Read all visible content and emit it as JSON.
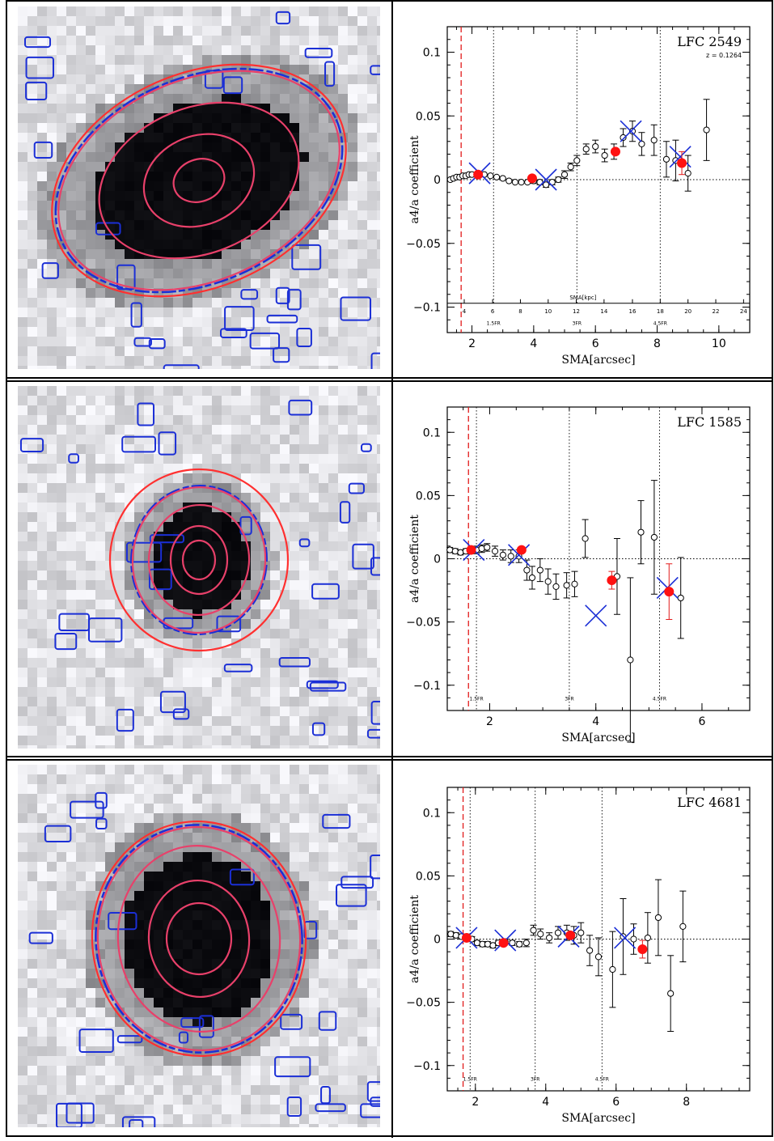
{
  "rows": [
    {
      "galaxy_ellipses": [
        {
          "rx": 32,
          "ry": 26,
          "rot": -20
        },
        {
          "rx": 70,
          "ry": 55,
          "rot": -22
        },
        {
          "rx": 128,
          "ry": 90,
          "rot": -22
        },
        {
          "rx": 182,
          "ry": 124,
          "rot": -24
        },
        {
          "rx": 190,
          "ry": 132,
          "rot": -24
        }
      ],
      "chart_data": {
        "type": "scatter",
        "label": "LFC 2549",
        "redshift": "z = 0.1264",
        "xlabel": "SMA[arcsec]",
        "ylabel": "a4/a coefficient",
        "xlim": [
          1.2,
          11
        ],
        "ylim": [
          -0.12,
          0.12
        ],
        "xticks": [
          2,
          4,
          6,
          8,
          10
        ],
        "yticks": [
          -0.1,
          -0.05,
          0,
          0.05,
          0.1
        ],
        "ytick_labels": [
          "−0.1",
          "−0.05",
          "0",
          "0.05",
          "0.1"
        ],
        "red_dashed_x": 1.65,
        "vlines": [
          {
            "x": 2.7,
            "label": "1.5FR"
          },
          {
            "x": 5.4,
            "label": "3FR"
          },
          {
            "x": 8.1,
            "label": "4.5FR"
          }
        ],
        "kpc_axis": {
          "label": "SMA[kpc]",
          "ticks": [
            {
              "x": 1.75,
              "label": "4"
            },
            {
              "x": 2.67,
              "label": "6"
            },
            {
              "x": 3.57,
              "label": "8"
            },
            {
              "x": 4.47,
              "label": "10"
            },
            {
              "x": 5.38,
              "label": "12"
            },
            {
              "x": 6.28,
              "label": "14"
            },
            {
              "x": 7.2,
              "label": "16"
            },
            {
              "x": 8.1,
              "label": "18"
            },
            {
              "x": 9.0,
              "label": "20"
            },
            {
              "x": 9.9,
              "label": "22"
            },
            {
              "x": 10.8,
              "label": "24"
            }
          ]
        },
        "points": [
          {
            "x": 1.3,
            "y": 0.0,
            "err": 0.001
          },
          {
            "x": 1.4,
            "y": 0.001,
            "err": 0.001
          },
          {
            "x": 1.5,
            "y": 0.002,
            "err": 0.001
          },
          {
            "x": 1.6,
            "y": 0.002,
            "err": 0.001
          },
          {
            "x": 1.7,
            "y": 0.003,
            "err": 0.001
          },
          {
            "x": 1.8,
            "y": 0.003,
            "err": 0.001
          },
          {
            "x": 1.9,
            "y": 0.004,
            "err": 0.001
          },
          {
            "x": 2.0,
            "y": 0.004,
            "err": 0.001
          },
          {
            "x": 2.2,
            "y": 0.005,
            "err": 0.001
          },
          {
            "x": 2.4,
            "y": 0.004,
            "err": 0.001
          },
          {
            "x": 2.6,
            "y": 0.003,
            "err": 0.001
          },
          {
            "x": 2.8,
            "y": 0.002,
            "err": 0.001
          },
          {
            "x": 3.0,
            "y": 0.001,
            "err": 0.001
          },
          {
            "x": 3.2,
            "y": -0.001,
            "err": 0.001
          },
          {
            "x": 3.4,
            "y": -0.002,
            "err": 0.001
          },
          {
            "x": 3.6,
            "y": -0.002,
            "err": 0.001
          },
          {
            "x": 3.8,
            "y": -0.002,
            "err": 0.001
          },
          {
            "x": 4.0,
            "y": -0.001,
            "err": 0.002
          },
          {
            "x": 4.2,
            "y": -0.002,
            "err": 0.002
          },
          {
            "x": 4.4,
            "y": -0.004,
            "err": 0.002
          },
          {
            "x": 4.6,
            "y": -0.002,
            "err": 0.002
          },
          {
            "x": 4.8,
            "y": 0.0,
            "err": 0.002
          },
          {
            "x": 5.0,
            "y": 0.004,
            "err": 0.003
          },
          {
            "x": 5.2,
            "y": 0.01,
            "err": 0.003
          },
          {
            "x": 5.4,
            "y": 0.015,
            "err": 0.004
          },
          {
            "x": 5.7,
            "y": 0.024,
            "err": 0.004
          },
          {
            "x": 6.0,
            "y": 0.026,
            "err": 0.005
          },
          {
            "x": 6.3,
            "y": 0.019,
            "err": 0.005
          },
          {
            "x": 6.6,
            "y": 0.022,
            "err": 0.006
          },
          {
            "x": 6.9,
            "y": 0.033,
            "err": 0.007
          },
          {
            "x": 7.2,
            "y": 0.038,
            "err": 0.008
          },
          {
            "x": 7.5,
            "y": 0.028,
            "err": 0.009
          },
          {
            "x": 7.9,
            "y": 0.031,
            "err": 0.012
          },
          {
            "x": 8.3,
            "y": 0.016,
            "err": 0.014
          },
          {
            "x": 8.6,
            "y": 0.015,
            "err": 0.016
          },
          {
            "x": 9.0,
            "y": 0.005,
            "err": 0.014
          },
          {
            "x": 9.6,
            "y": 0.039,
            "err": 0.024
          }
        ],
        "red_points": [
          {
            "x": 2.2,
            "y": 0.004,
            "err": 0.0
          },
          {
            "x": 3.95,
            "y": 0.001,
            "err": 0.0
          },
          {
            "x": 6.65,
            "y": 0.022,
            "err": 0.0
          },
          {
            "x": 8.8,
            "y": 0.013,
            "err": 0.009
          }
        ],
        "crosses": [
          {
            "x": 2.25,
            "y": 0.005
          },
          {
            "x": 4.4,
            "y": 0.0
          },
          {
            "x": 7.15,
            "y": 0.038
          },
          {
            "x": 8.75,
            "y": 0.018
          }
        ]
      }
    },
    {
      "galaxy_ellipses": [
        {
          "rx": 20,
          "ry": 24,
          "rot": 0
        },
        {
          "rx": 35,
          "ry": 42,
          "rot": 0
        },
        {
          "rx": 62,
          "ry": 68,
          "rot": 5
        },
        {
          "rx": 82,
          "ry": 90,
          "rot": 5
        },
        {
          "rx": 110,
          "ry": 112,
          "rot": 0
        }
      ],
      "chart_data": {
        "type": "scatter",
        "label": "LFC 1585",
        "xlabel": "SMA[arcsec]",
        "ylabel": "a4/a coefficient",
        "xlim": [
          1.2,
          6.9
        ],
        "ylim": [
          -0.12,
          0.12
        ],
        "xticks": [
          2,
          4,
          6
        ],
        "yticks": [
          -0.1,
          -0.05,
          0,
          0.05,
          0.1
        ],
        "ytick_labels": [
          "−0.1",
          "−0.05",
          "0",
          "0.05",
          "0.1"
        ],
        "red_dashed_x": 1.6,
        "vlines": [
          {
            "x": 1.75,
            "label": "1.5FR"
          },
          {
            "x": 3.5,
            "label": "3FR"
          },
          {
            "x": 5.2,
            "label": "4.5FR"
          }
        ],
        "points": [
          {
            "x": 1.25,
            "y": 0.007,
            "err": 0.002
          },
          {
            "x": 1.35,
            "y": 0.006,
            "err": 0.002
          },
          {
            "x": 1.45,
            "y": 0.005,
            "err": 0.002
          },
          {
            "x": 1.55,
            "y": 0.006,
            "err": 0.002
          },
          {
            "x": 1.65,
            "y": 0.006,
            "err": 0.002
          },
          {
            "x": 1.75,
            "y": 0.007,
            "err": 0.003
          },
          {
            "x": 1.85,
            "y": 0.008,
            "err": 0.003
          },
          {
            "x": 1.95,
            "y": 0.009,
            "err": 0.003
          },
          {
            "x": 2.1,
            "y": 0.006,
            "err": 0.004
          },
          {
            "x": 2.25,
            "y": 0.003,
            "err": 0.004
          },
          {
            "x": 2.4,
            "y": 0.002,
            "err": 0.005
          },
          {
            "x": 2.55,
            "y": 0.002,
            "err": 0.005
          },
          {
            "x": 2.7,
            "y": -0.009,
            "err": 0.008
          },
          {
            "x": 2.8,
            "y": -0.015,
            "err": 0.009
          },
          {
            "x": 2.95,
            "y": -0.009,
            "err": 0.009
          },
          {
            "x": 3.1,
            "y": -0.018,
            "err": 0.01
          },
          {
            "x": 3.25,
            "y": -0.022,
            "err": 0.01
          },
          {
            "x": 3.45,
            "y": -0.021,
            "err": 0.01
          },
          {
            "x": 3.6,
            "y": -0.02,
            "err": 0.01
          },
          {
            "x": 3.8,
            "y": 0.016,
            "err": 0.015
          },
          {
            "x": 4.4,
            "y": -0.014,
            "err": 0.03
          },
          {
            "x": 4.65,
            "y": -0.08,
            "err": 0.065
          },
          {
            "x": 4.85,
            "y": 0.021,
            "err": 0.025
          },
          {
            "x": 5.1,
            "y": 0.017,
            "err": 0.045
          },
          {
            "x": 5.6,
            "y": -0.031,
            "err": 0.032
          }
        ],
        "red_points": [
          {
            "x": 1.65,
            "y": 0.007,
            "err": 0.0
          },
          {
            "x": 2.6,
            "y": 0.007,
            "err": 0.0
          },
          {
            "x": 4.3,
            "y": -0.017,
            "err": 0.007
          },
          {
            "x": 5.38,
            "y": -0.026,
            "err": 0.022
          }
        ],
        "crosses": [
          {
            "x": 1.7,
            "y": 0.007
          },
          {
            "x": 2.55,
            "y": 0.003
          },
          {
            "x": 4.0,
            "y": -0.045
          },
          {
            "x": 5.35,
            "y": -0.023
          }
        ]
      }
    },
    {
      "galaxy_ellipses": [
        {
          "rx": 40,
          "ry": 44,
          "rot": 0
        },
        {
          "rx": 62,
          "ry": 72,
          "rot": -5
        },
        {
          "rx": 100,
          "ry": 115,
          "rot": -5
        },
        {
          "rx": 125,
          "ry": 138,
          "rot": -5
        },
        {
          "rx": 132,
          "ry": 145,
          "rot": -5
        }
      ],
      "chart_data": {
        "type": "scatter",
        "label": "LFC 4681",
        "xlabel": "SMA[arcsec]",
        "ylabel": "a4/a coefficient",
        "xlim": [
          1.2,
          9.8
        ],
        "ylim": [
          -0.12,
          0.12
        ],
        "xticks": [
          2,
          4,
          6,
          8
        ],
        "yticks": [
          -0.1,
          -0.05,
          0,
          0.05,
          0.1
        ],
        "ytick_labels": [
          "−0.1",
          "−0.05",
          "0",
          "0.05",
          "0.1"
        ],
        "red_dashed_x": 1.65,
        "vlines": [
          {
            "x": 1.85,
            "label": "1.5FR"
          },
          {
            "x": 3.7,
            "label": "3FR"
          },
          {
            "x": 5.6,
            "label": "4.5FR"
          }
        ],
        "points": [
          {
            "x": 1.3,
            "y": 0.004,
            "err": 0.002
          },
          {
            "x": 1.45,
            "y": 0.003,
            "err": 0.002
          },
          {
            "x": 1.6,
            "y": 0.002,
            "err": 0.002
          },
          {
            "x": 1.75,
            "y": 0.002,
            "err": 0.002
          },
          {
            "x": 1.9,
            "y": 0.0,
            "err": 0.002
          },
          {
            "x": 2.05,
            "y": -0.003,
            "err": 0.002
          },
          {
            "x": 2.2,
            "y": -0.004,
            "err": 0.002
          },
          {
            "x": 2.35,
            "y": -0.004,
            "err": 0.002
          },
          {
            "x": 2.5,
            "y": -0.005,
            "err": 0.002
          },
          {
            "x": 2.65,
            "y": -0.003,
            "err": 0.002
          },
          {
            "x": 2.85,
            "y": -0.002,
            "err": 0.002
          },
          {
            "x": 3.05,
            "y": -0.003,
            "err": 0.002
          },
          {
            "x": 3.25,
            "y": -0.004,
            "err": 0.002
          },
          {
            "x": 3.45,
            "y": -0.003,
            "err": 0.003
          },
          {
            "x": 3.65,
            "y": 0.007,
            "err": 0.004
          },
          {
            "x": 3.85,
            "y": 0.004,
            "err": 0.004
          },
          {
            "x": 4.1,
            "y": 0.001,
            "err": 0.004
          },
          {
            "x": 4.35,
            "y": 0.005,
            "err": 0.005
          },
          {
            "x": 4.6,
            "y": 0.005,
            "err": 0.006
          },
          {
            "x": 4.8,
            "y": 0.003,
            "err": 0.007
          },
          {
            "x": 5.0,
            "y": 0.005,
            "err": 0.008
          },
          {
            "x": 5.25,
            "y": -0.009,
            "err": 0.012
          },
          {
            "x": 5.5,
            "y": -0.014,
            "err": 0.015
          },
          {
            "x": 5.9,
            "y": -0.024,
            "err": 0.03
          },
          {
            "x": 6.2,
            "y": 0.002,
            "err": 0.03
          },
          {
            "x": 6.5,
            "y": 0.0,
            "err": 0.012
          },
          {
            "x": 6.9,
            "y": 0.001,
            "err": 0.02
          },
          {
            "x": 7.2,
            "y": 0.017,
            "err": 0.03
          },
          {
            "x": 7.55,
            "y": -0.043,
            "err": 0.03
          },
          {
            "x": 7.9,
            "y": 0.01,
            "err": 0.028
          }
        ],
        "red_points": [
          {
            "x": 1.75,
            "y": 0.001,
            "err": 0.0
          },
          {
            "x": 2.8,
            "y": -0.003,
            "err": 0.0
          },
          {
            "x": 4.7,
            "y": 0.003,
            "err": 0.0
          },
          {
            "x": 6.75,
            "y": -0.008,
            "err": 0.007
          }
        ],
        "crosses": [
          {
            "x": 1.75,
            "y": 0.001
          },
          {
            "x": 2.85,
            "y": -0.001
          },
          {
            "x": 4.65,
            "y": 0.002
          },
          {
            "x": 6.25,
            "y": 0.001
          }
        ]
      }
    }
  ]
}
